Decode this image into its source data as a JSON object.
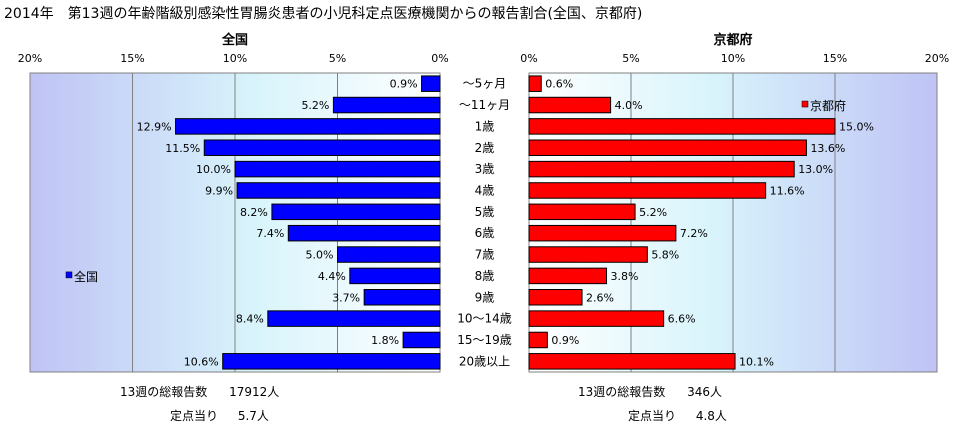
{
  "title": "2014年　第13週の年齢階級別感染性胃腸炎患者の小児科定点医療機関からの報告割合(全国、京都府)",
  "chart_data": {
    "type": "bar",
    "orientation": "horizontal",
    "categories": [
      "～5ヶ月",
      "～11ヶ月",
      "1歳",
      "2歳",
      "3歳",
      "4歳",
      "5歳",
      "6歳",
      "7歳",
      "8歳",
      "9歳",
      "10～14歳",
      "15～19歳",
      "20歳以上"
    ],
    "panels": [
      {
        "title": "全国",
        "legend": "全国",
        "legend_position": "left-middle",
        "color": "#0000ff",
        "direction": "leftward",
        "xlim": [
          0,
          20
        ],
        "ticks": [
          0,
          5,
          10,
          15,
          20
        ],
        "tick_labels": [
          "0%",
          "5%",
          "10%",
          "15%",
          "20%"
        ],
        "values": [
          0.9,
          5.2,
          12.9,
          11.5,
          10.0,
          9.9,
          8.2,
          7.4,
          5.0,
          4.4,
          3.7,
          8.4,
          1.8,
          10.6
        ],
        "value_labels": [
          "0.9%",
          "5.2%",
          "12.9%",
          "11.5%",
          "10.0%",
          "9.9%",
          "8.2%",
          "7.4%",
          "5.0%",
          "4.4%",
          "3.7%",
          "8.4%",
          "1.8%",
          "10.6%"
        ],
        "total_label": "13週の総報告数",
        "total_value": "17912人",
        "per_site_label": "定点当り",
        "per_site_value": "5.7人"
      },
      {
        "title": "京都府",
        "legend": "京都府",
        "legend_position": "top-right",
        "color": "#ff0000",
        "direction": "rightward",
        "xlim": [
          0,
          20
        ],
        "ticks": [
          0,
          5,
          10,
          15,
          20
        ],
        "tick_labels": [
          "0%",
          "5%",
          "10%",
          "15%",
          "20%"
        ],
        "values": [
          0.6,
          4.0,
          15.0,
          13.6,
          13.0,
          11.6,
          5.2,
          7.2,
          5.8,
          3.8,
          2.6,
          6.6,
          0.9,
          10.1
        ],
        "value_labels": [
          "0.6%",
          "4.0%",
          "15.0%",
          "13.6%",
          "13.0%",
          "11.6%",
          "5.2%",
          "7.2%",
          "5.8%",
          "3.8%",
          "2.6%",
          "6.6%",
          "0.9%",
          "10.1%"
        ],
        "total_label": "13週の総報告数",
        "total_value": "346人",
        "per_site_label": "定点当り",
        "per_site_value": "4.8人"
      }
    ]
  }
}
